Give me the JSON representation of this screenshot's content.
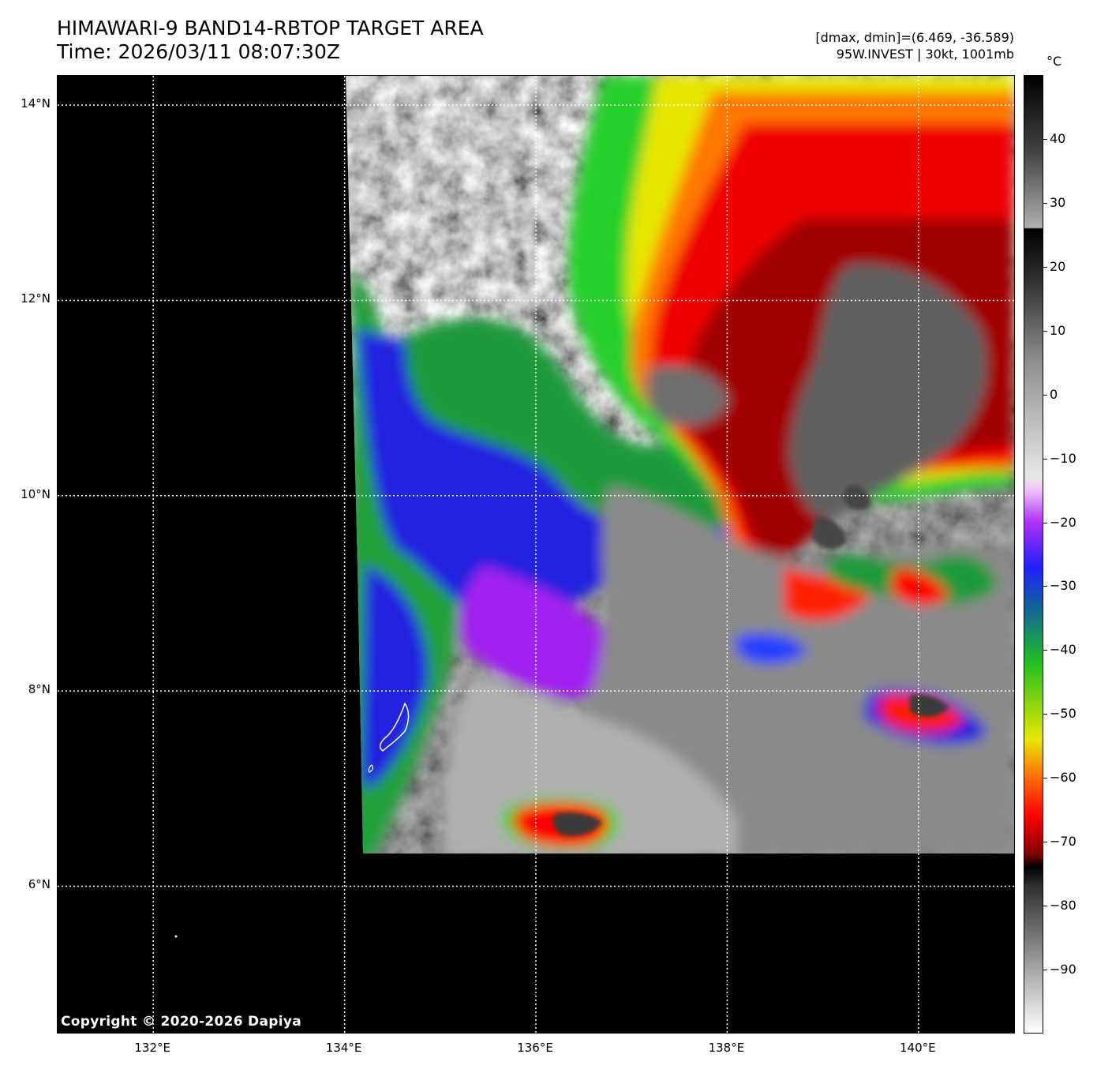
{
  "title_line1": "HIMAWARI-9 BAND14-RBTOP TARGET AREA",
  "title_line2": "Time: 2026/03/11 08:07:30Z",
  "info_line1": "[dmax, dmin]=(6.469, -36.589)",
  "info_line2": "95W.INVEST | 30kt, 1001mb",
  "copyright": "Copyright © 2020-2026 Dapiya",
  "map": {
    "lon_range": [
      131.0,
      141.0
    ],
    "lat_range": [
      4.5,
      14.3
    ],
    "lat_ticks": [
      {
        "value": 14,
        "label": "14°N"
      },
      {
        "value": 12,
        "label": "12°N"
      },
      {
        "value": 10,
        "label": "10°N"
      },
      {
        "value": 8,
        "label": "8°N"
      },
      {
        "value": 6,
        "label": "6°N"
      }
    ],
    "lon_ticks": [
      {
        "value": 132,
        "label": "132°E"
      },
      {
        "value": 134,
        "label": "134°E"
      },
      {
        "value": 136,
        "label": "136°E"
      },
      {
        "value": 138,
        "label": "138°E"
      },
      {
        "value": 140,
        "label": "140°E"
      }
    ],
    "grid": "dotted white"
  },
  "colorbar": {
    "unit": "°C",
    "range": [
      -100,
      50
    ],
    "ticks": [
      40,
      30,
      20,
      10,
      0,
      -10,
      -20,
      -30,
      -40,
      -50,
      -60,
      -70,
      -80,
      -90
    ],
    "tick_labels": [
      "40",
      "30",
      "20",
      "10",
      "0",
      "−10",
      "−20",
      "−30",
      "−40",
      "−50",
      "−60",
      "−70",
      "−80",
      "−90"
    ]
  }
}
